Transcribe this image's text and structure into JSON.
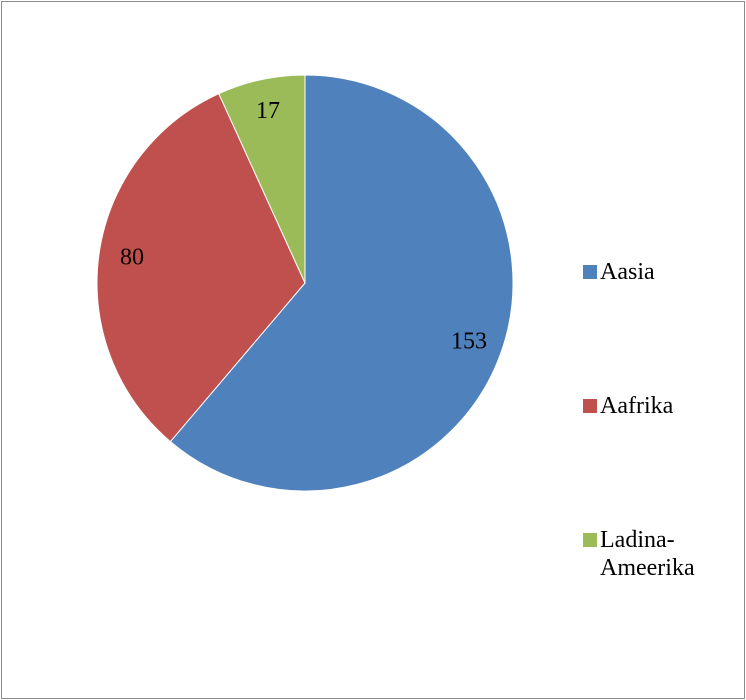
{
  "chart_data": {
    "type": "pie",
    "categories": [
      "Aasia",
      "Aafrika",
      "Ladina-Ameerika"
    ],
    "values": [
      153,
      80,
      17
    ],
    "colors": [
      "#4f81bd",
      "#c0504d",
      "#9bbb59"
    ],
    "legend": "right"
  }
}
